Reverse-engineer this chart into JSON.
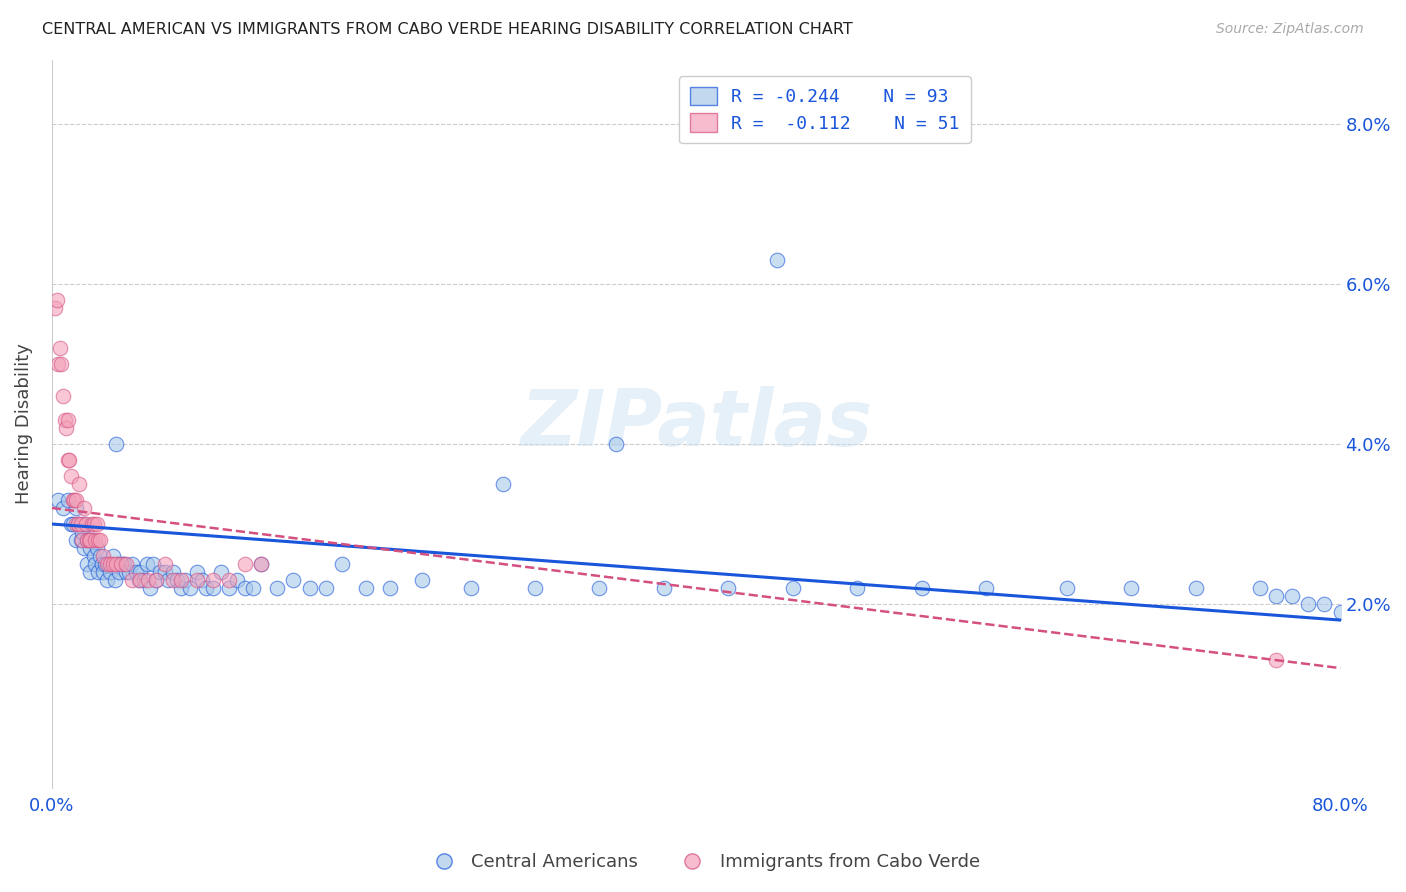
{
  "title": "CENTRAL AMERICAN VS IMMIGRANTS FROM CABO VERDE HEARING DISABILITY CORRELATION CHART",
  "source": "Source: ZipAtlas.com",
  "ylabel": "Hearing Disability",
  "yticks": [
    0.0,
    0.02,
    0.04,
    0.06,
    0.08
  ],
  "ytick_labels": [
    "",
    "2.0%",
    "4.0%",
    "6.0%",
    "8.0%"
  ],
  "xlim": [
    0.0,
    0.8
  ],
  "ylim": [
    -0.003,
    0.088
  ],
  "legend": {
    "blue_R": "R = -0.244",
    "blue_N": "N = 93",
    "pink_R": "R =  -0.112",
    "pink_N": "N = 51"
  },
  "blue_color": "#a8c8e8",
  "blue_line_color": "#1a56db",
  "pink_color": "#f4a0b8",
  "pink_line_color": "#d45080",
  "watermark": "ZIPatlas",
  "background_color": "#ffffff",
  "blue_trend": [
    0.03,
    0.018
  ],
  "pink_trend": [
    0.032,
    0.012
  ],
  "blue_scatter": {
    "x": [
      0.004,
      0.007,
      0.01,
      0.012,
      0.013,
      0.015,
      0.015,
      0.016,
      0.018,
      0.019,
      0.02,
      0.02,
      0.022,
      0.022,
      0.024,
      0.024,
      0.025,
      0.026,
      0.027,
      0.028,
      0.029,
      0.03,
      0.031,
      0.032,
      0.033,
      0.034,
      0.035,
      0.036,
      0.038,
      0.039,
      0.04,
      0.041,
      0.042,
      0.044,
      0.045,
      0.046,
      0.048,
      0.05,
      0.052,
      0.054,
      0.055,
      0.057,
      0.059,
      0.061,
      0.063,
      0.065,
      0.067,
      0.07,
      0.072,
      0.075,
      0.078,
      0.08,
      0.083,
      0.086,
      0.09,
      0.093,
      0.096,
      0.1,
      0.105,
      0.11,
      0.115,
      0.12,
      0.125,
      0.13,
      0.14,
      0.15,
      0.16,
      0.17,
      0.18,
      0.195,
      0.21,
      0.23,
      0.26,
      0.3,
      0.34,
      0.38,
      0.42,
      0.46,
      0.5,
      0.54,
      0.58,
      0.63,
      0.67,
      0.71,
      0.75,
      0.76,
      0.77,
      0.78,
      0.79,
      0.8,
      0.45,
      0.35,
      0.28
    ],
    "y": [
      0.033,
      0.032,
      0.033,
      0.03,
      0.03,
      0.028,
      0.032,
      0.03,
      0.028,
      0.029,
      0.03,
      0.027,
      0.028,
      0.025,
      0.027,
      0.024,
      0.028,
      0.026,
      0.025,
      0.027,
      0.024,
      0.026,
      0.025,
      0.024,
      0.025,
      0.023,
      0.025,
      0.024,
      0.026,
      0.023,
      0.04,
      0.025,
      0.024,
      0.025,
      0.025,
      0.024,
      0.024,
      0.025,
      0.024,
      0.023,
      0.024,
      0.023,
      0.025,
      0.022,
      0.025,
      0.023,
      0.024,
      0.024,
      0.023,
      0.024,
      0.023,
      0.022,
      0.023,
      0.022,
      0.024,
      0.023,
      0.022,
      0.022,
      0.024,
      0.022,
      0.023,
      0.022,
      0.022,
      0.025,
      0.022,
      0.023,
      0.022,
      0.022,
      0.025,
      0.022,
      0.022,
      0.023,
      0.022,
      0.022,
      0.022,
      0.022,
      0.022,
      0.022,
      0.022,
      0.022,
      0.022,
      0.022,
      0.022,
      0.022,
      0.022,
      0.021,
      0.021,
      0.02,
      0.02,
      0.019,
      0.063,
      0.04,
      0.035
    ]
  },
  "pink_scatter": {
    "x": [
      0.002,
      0.003,
      0.004,
      0.005,
      0.006,
      0.007,
      0.008,
      0.009,
      0.01,
      0.01,
      0.011,
      0.012,
      0.013,
      0.014,
      0.015,
      0.015,
      0.016,
      0.017,
      0.018,
      0.019,
      0.02,
      0.021,
      0.022,
      0.023,
      0.024,
      0.025,
      0.026,
      0.027,
      0.028,
      0.029,
      0.03,
      0.032,
      0.034,
      0.036,
      0.038,
      0.04,
      0.043,
      0.046,
      0.05,
      0.055,
      0.06,
      0.065,
      0.07,
      0.075,
      0.08,
      0.09,
      0.1,
      0.11,
      0.12,
      0.13,
      0.76
    ],
    "y": [
      0.057,
      0.058,
      0.05,
      0.052,
      0.05,
      0.046,
      0.043,
      0.042,
      0.043,
      0.038,
      0.038,
      0.036,
      0.033,
      0.033,
      0.033,
      0.03,
      0.03,
      0.035,
      0.03,
      0.028,
      0.032,
      0.03,
      0.028,
      0.028,
      0.028,
      0.03,
      0.03,
      0.028,
      0.03,
      0.028,
      0.028,
      0.026,
      0.025,
      0.025,
      0.025,
      0.025,
      0.025,
      0.025,
      0.023,
      0.023,
      0.023,
      0.023,
      0.025,
      0.023,
      0.023,
      0.023,
      0.023,
      0.023,
      0.025,
      0.025,
      0.013
    ]
  }
}
